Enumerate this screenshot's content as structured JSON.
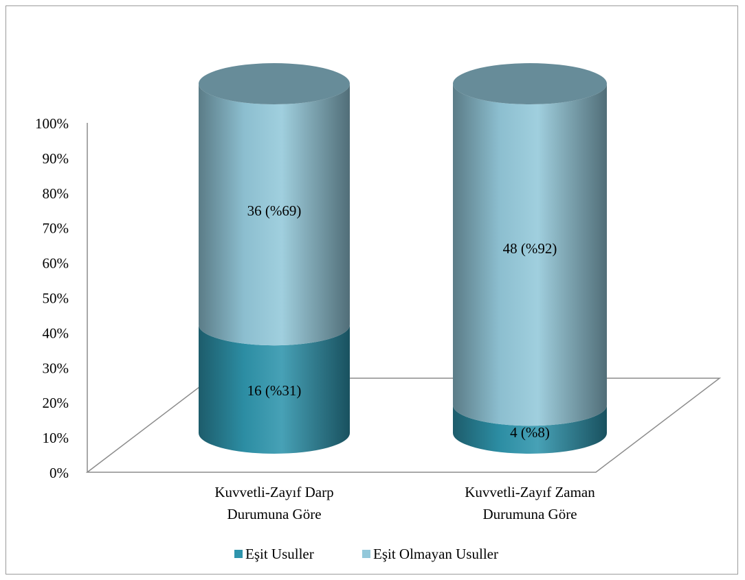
{
  "chart_data": {
    "type": "bar",
    "variant": "stacked-100-percent-3d-cylinder",
    "title": "",
    "xlabel": "",
    "ylabel": "",
    "ylim": [
      0,
      100
    ],
    "yticks": [
      "0%",
      "10%",
      "20%",
      "30%",
      "40%",
      "50%",
      "60%",
      "70%",
      "80%",
      "90%",
      "100%"
    ],
    "grid": false,
    "legend_position": "bottom",
    "categories": [
      [
        "Kuvvetli-Zayıf Darp",
        "Durumuna Göre"
      ],
      [
        "Kuvvetli-Zayıf Zaman",
        "Durumuna Göre"
      ]
    ],
    "series": [
      {
        "name": "Eşit Usuller",
        "values": [
          31,
          8
        ],
        "labels": [
          "16 (%31)",
          "4 (%8)"
        ],
        "color": "#2e94ac"
      },
      {
        "name": "Eşit Olmayan Usuller",
        "values": [
          69,
          92
        ],
        "labels": [
          "36 (%69)",
          "48 (%92)"
        ],
        "color": "#93c8da"
      }
    ]
  }
}
